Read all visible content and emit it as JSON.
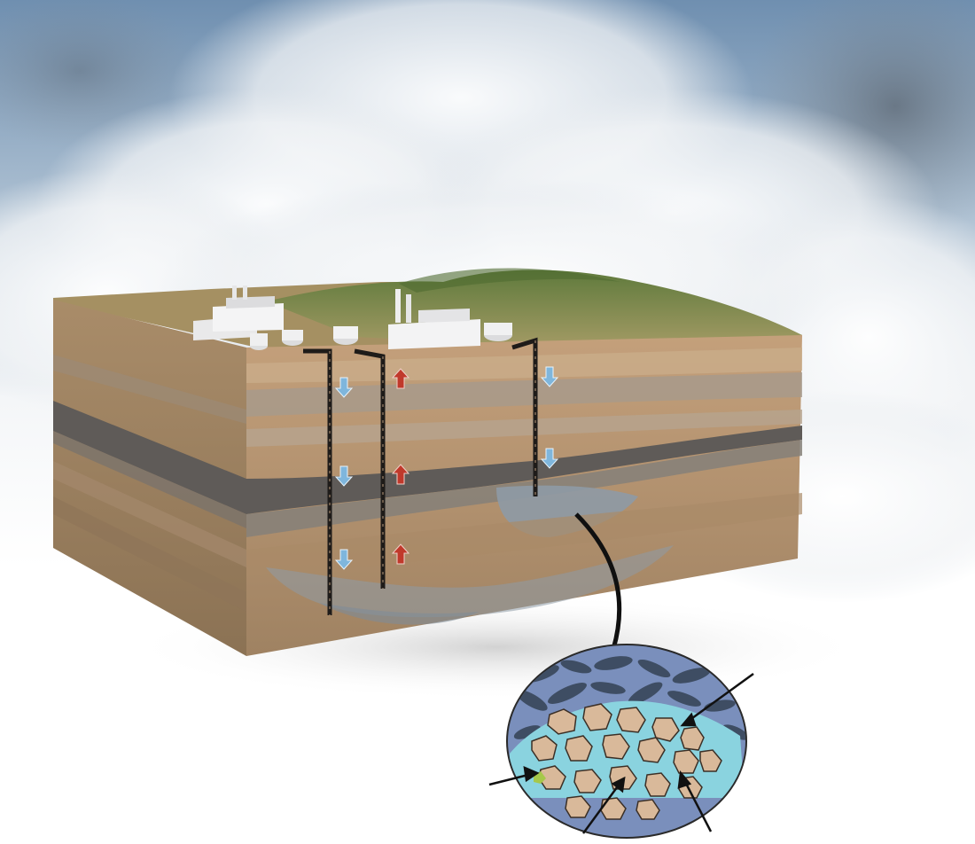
{
  "figure": {
    "wells": [
      {
        "kind": "injection",
        "arrow_color": "#7fb6dc",
        "flow": "down"
      },
      {
        "kind": "production",
        "arrow_color": "#c0392b",
        "flow": "up"
      },
      {
        "kind": "injection",
        "arrow_color": "#7fb6dc",
        "flow": "down"
      }
    ],
    "palette": {
      "sky": "#8fa9c4",
      "ground_top": "#8d8a4a",
      "soil": "#b39370",
      "caprock": "#6e6e70",
      "plume": "#8e9aa5",
      "grain": "#d9b99a",
      "brine": "#8ad3df",
      "co2": "#3e4d63",
      "well_casing": "#1e1b19"
    }
  }
}
